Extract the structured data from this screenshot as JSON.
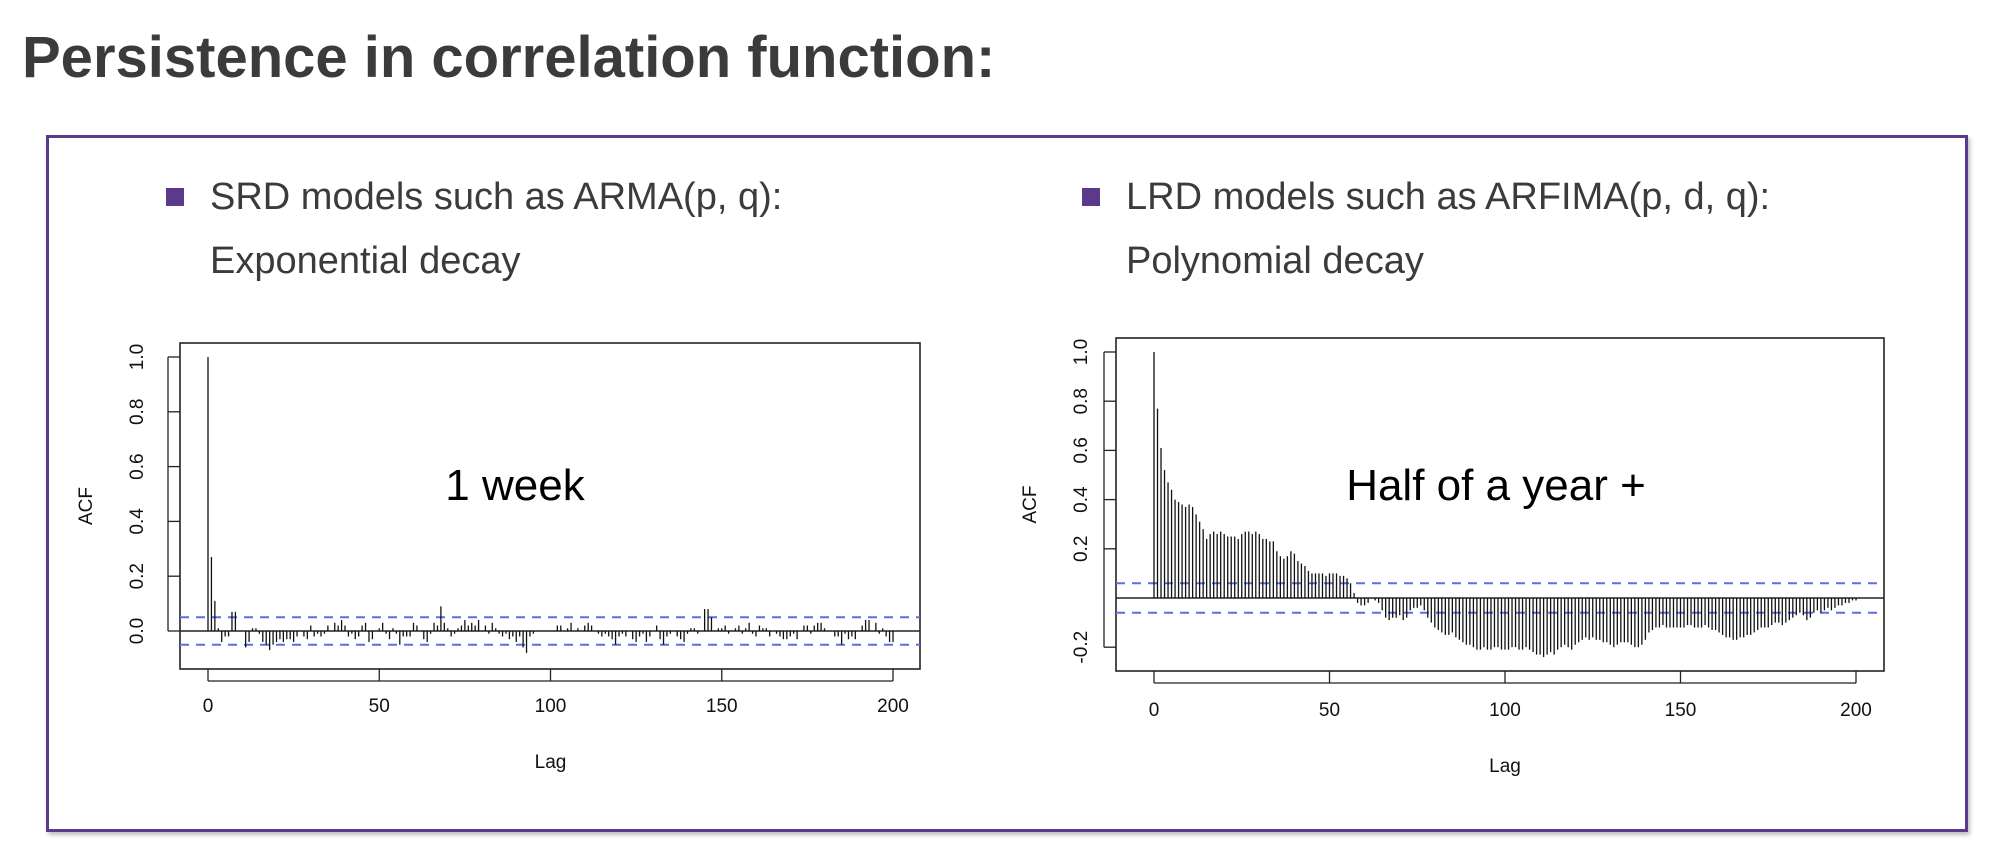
{
  "slide": {
    "title": "Persistence in correlation function:",
    "accent_color": "#5b3a8c",
    "bullets": [
      {
        "line1": "SRD models such as  ARMA(p, q):",
        "line2": "Exponential decay"
      },
      {
        "line1": "LRD models such as ARFIMA(p, d, q):",
        "line2": "Polynomial decay"
      }
    ]
  },
  "chart_data": [
    {
      "type": "bar",
      "subtype": "acf",
      "annotation": "1 week",
      "xlabel": "Lag",
      "ylabel": "ACF",
      "xlim": [
        0,
        200
      ],
      "ylim": [
        -0.1,
        1.0
      ],
      "xticks": [
        "0",
        "50",
        "100",
        "150",
        "200"
      ],
      "yticks": [
        "0.0",
        "0.2",
        "0.4",
        "0.6",
        "0.8",
        "1.0"
      ],
      "ytick_values": [
        0,
        0.2,
        0.4,
        0.6,
        0.8,
        1.0
      ],
      "xtick_values": [
        0,
        50,
        100,
        150,
        200
      ],
      "confidence_band": 0.05,
      "values": [
        1.0,
        0.27,
        0.11,
        0.01,
        -0.04,
        -0.02,
        -0.02,
        0.07,
        0.07,
        0.0,
        0.0,
        -0.06,
        -0.04,
        0.01,
        0.01,
        -0.01,
        -0.04,
        -0.05,
        -0.07,
        -0.05,
        -0.04,
        -0.03,
        -0.04,
        -0.03,
        -0.03,
        -0.04,
        -0.02,
        0.0,
        -0.02,
        -0.03,
        0.02,
        -0.02,
        -0.01,
        -0.02,
        -0.01,
        0.02,
        0.0,
        0.03,
        0.02,
        0.04,
        0.02,
        -0.02,
        -0.01,
        -0.03,
        -0.02,
        0.02,
        0.03,
        -0.04,
        -0.03,
        0.0,
        0.01,
        0.03,
        -0.01,
        -0.03,
        0.01,
        -0.01,
        -0.05,
        -0.02,
        -0.02,
        -0.02,
        0.03,
        0.02,
        0.0,
        -0.03,
        -0.04,
        -0.01,
        0.03,
        0.02,
        0.09,
        0.03,
        0.01,
        -0.02,
        -0.01,
        0.01,
        0.02,
        0.04,
        0.02,
        0.03,
        0.02,
        0.04,
        0.0,
        0.02,
        -0.01,
        0.03,
        0.01,
        -0.01,
        -0.02,
        -0.01,
        -0.03,
        -0.02,
        -0.04,
        -0.02,
        -0.06,
        -0.08,
        -0.02,
        -0.01,
        0.0,
        0.0,
        0.0,
        0.0,
        0.0,
        0.0,
        0.02,
        0.02,
        0.0,
        0.01,
        0.03,
        0.0,
        0.01,
        0.0,
        0.02,
        0.03,
        0.02,
        0.0,
        -0.01,
        -0.02,
        -0.01,
        -0.02,
        -0.03,
        -0.05,
        -0.02,
        -0.01,
        -0.02,
        0.0,
        -0.03,
        -0.04,
        -0.02,
        -0.01,
        -0.04,
        -0.02,
        0.0,
        0.02,
        -0.03,
        -0.05,
        -0.02,
        -0.01,
        0.0,
        -0.02,
        -0.03,
        -0.04,
        -0.01,
        0.01,
        0.01,
        -0.01,
        0.0,
        0.08,
        0.08,
        0.05,
        0.0,
        0.01,
        0.01,
        0.02,
        -0.01,
        0.0,
        0.01,
        0.02,
        -0.01,
        0.01,
        0.03,
        -0.01,
        -0.02,
        0.02,
        0.01,
        0.01,
        -0.02,
        0.0,
        -0.01,
        -0.02,
        -0.03,
        -0.03,
        -0.02,
        -0.01,
        -0.03,
        0.0,
        0.02,
        0.02,
        -0.01,
        0.02,
        0.03,
        0.03,
        0.01,
        0.0,
        0.0,
        -0.02,
        -0.02,
        -0.05,
        -0.01,
        -0.03,
        -0.02,
        -0.03,
        0.0,
        0.02,
        0.04,
        0.04,
        0.0,
        0.03,
        -0.01,
        0.01,
        -0.02,
        -0.04,
        -0.04
      ]
    },
    {
      "type": "bar",
      "subtype": "acf",
      "annotation": "Half of a year +",
      "xlabel": "Lag",
      "ylabel": "ACF",
      "xlim": [
        0,
        200
      ],
      "ylim": [
        -0.26,
        1.0
      ],
      "xticks": [
        "0",
        "50",
        "100",
        "150",
        "200"
      ],
      "yticks": [
        "-0.2",
        "0.2",
        "0.4",
        "0.6",
        "0.8",
        "1.0"
      ],
      "ytick_values": [
        -0.2,
        0.2,
        0.4,
        0.6,
        0.8,
        1.0
      ],
      "xtick_values": [
        0,
        50,
        100,
        150,
        200
      ],
      "confidence_band": 0.06,
      "values": [
        1.0,
        0.77,
        0.61,
        0.52,
        0.47,
        0.44,
        0.4,
        0.39,
        0.38,
        0.37,
        0.38,
        0.37,
        0.34,
        0.31,
        0.28,
        0.24,
        0.26,
        0.27,
        0.26,
        0.27,
        0.26,
        0.25,
        0.25,
        0.25,
        0.24,
        0.26,
        0.27,
        0.27,
        0.26,
        0.27,
        0.26,
        0.24,
        0.24,
        0.23,
        0.23,
        0.19,
        0.17,
        0.16,
        0.17,
        0.19,
        0.18,
        0.15,
        0.14,
        0.13,
        0.11,
        0.1,
        0.1,
        0.1,
        0.1,
        0.09,
        0.1,
        0.1,
        0.1,
        0.09,
        0.09,
        0.08,
        0.06,
        0.02,
        -0.02,
        -0.03,
        -0.03,
        -0.02,
        0.0,
        -0.01,
        -0.02,
        -0.05,
        -0.08,
        -0.09,
        -0.08,
        -0.08,
        -0.07,
        -0.09,
        -0.08,
        -0.05,
        -0.04,
        -0.04,
        -0.03,
        -0.05,
        -0.08,
        -0.1,
        -0.12,
        -0.13,
        -0.14,
        -0.15,
        -0.15,
        -0.14,
        -0.16,
        -0.17,
        -0.18,
        -0.19,
        -0.19,
        -0.2,
        -0.21,
        -0.21,
        -0.2,
        -0.21,
        -0.21,
        -0.2,
        -0.2,
        -0.21,
        -0.21,
        -0.21,
        -0.2,
        -0.2,
        -0.21,
        -0.21,
        -0.2,
        -0.21,
        -0.22,
        -0.23,
        -0.23,
        -0.24,
        -0.23,
        -0.22,
        -0.23,
        -0.21,
        -0.2,
        -0.19,
        -0.2,
        -0.21,
        -0.19,
        -0.18,
        -0.17,
        -0.16,
        -0.17,
        -0.16,
        -0.17,
        -0.17,
        -0.18,
        -0.18,
        -0.19,
        -0.2,
        -0.19,
        -0.18,
        -0.18,
        -0.18,
        -0.19,
        -0.2,
        -0.2,
        -0.19,
        -0.17,
        -0.14,
        -0.13,
        -0.12,
        -0.12,
        -0.11,
        -0.12,
        -0.12,
        -0.12,
        -0.12,
        -0.12,
        -0.12,
        -0.11,
        -0.11,
        -0.12,
        -0.12,
        -0.12,
        -0.11,
        -0.12,
        -0.13,
        -0.13,
        -0.14,
        -0.15,
        -0.16,
        -0.16,
        -0.17,
        -0.17,
        -0.16,
        -0.16,
        -0.15,
        -0.15,
        -0.14,
        -0.13,
        -0.12,
        -0.12,
        -0.12,
        -0.11,
        -0.1,
        -0.1,
        -0.11,
        -0.1,
        -0.09,
        -0.08,
        -0.07,
        -0.06,
        -0.07,
        -0.09,
        -0.08,
        -0.06,
        -0.05,
        -0.06,
        -0.05,
        -0.04,
        -0.05,
        -0.04,
        -0.03,
        -0.03,
        -0.02,
        -0.02,
        -0.01,
        -0.01
      ]
    }
  ]
}
